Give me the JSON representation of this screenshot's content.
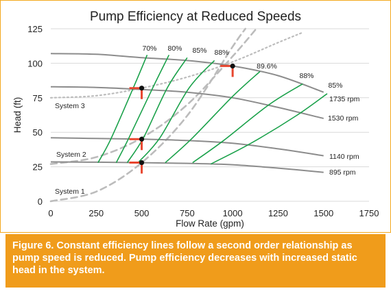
{
  "chart_data": {
    "type": "line",
    "title": "Pump Efficiency at  Reduced Speeds",
    "xlabel": "Flow Rate (gpm)",
    "ylabel": "Head (ft)",
    "xlim": [
      0,
      1750
    ],
    "ylim": [
      0,
      125
    ],
    "x_ticks": [
      0,
      250,
      500,
      750,
      1000,
      1250,
      1500,
      1750
    ],
    "y_ticks": [
      0,
      25,
      50,
      75,
      100,
      125
    ],
    "grid": "horizontal",
    "pump_curves": [
      {
        "label": "1735 rpm",
        "points": [
          [
            0,
            107
          ],
          [
            250,
            106.5
          ],
          [
            500,
            104
          ],
          [
            750,
            102
          ],
          [
            1000,
            98
          ],
          [
            1250,
            91
          ],
          [
            1500,
            79
          ]
        ]
      },
      {
        "label": "1530 rpm",
        "points": [
          [
            0,
            83
          ],
          [
            250,
            82.5
          ],
          [
            500,
            81
          ],
          [
            750,
            79
          ],
          [
            1000,
            75
          ],
          [
            1250,
            68
          ],
          [
            1500,
            60
          ]
        ]
      },
      {
        "label": "1140 rpm",
        "points": [
          [
            0,
            46
          ],
          [
            250,
            45.5
          ],
          [
            500,
            45
          ],
          [
            750,
            44
          ],
          [
            1000,
            42
          ],
          [
            1250,
            38
          ],
          [
            1500,
            33
          ]
        ]
      },
      {
        "label": "895 rpm",
        "points": [
          [
            0,
            28.5
          ],
          [
            250,
            28.3
          ],
          [
            500,
            28
          ],
          [
            750,
            27.5
          ],
          [
            1000,
            26.5
          ],
          [
            1250,
            24
          ],
          [
            1500,
            21
          ]
        ]
      }
    ],
    "efficiency_lines": [
      {
        "label": "70%",
        "points": [
          [
            260,
            28
          ],
          [
            330,
            45
          ],
          [
            450,
            81
          ],
          [
            530,
            106
          ]
        ]
      },
      {
        "label": "80%",
        "points": [
          [
            360,
            28
          ],
          [
            430,
            46
          ],
          [
            560,
            82
          ],
          [
            650,
            106
          ]
        ]
      },
      {
        "label": "85%",
        "points": [
          [
            420,
            28
          ],
          [
            510,
            46
          ],
          [
            640,
            82
          ],
          [
            750,
            104
          ]
        ]
      },
      {
        "label": "88%",
        "points": [
          [
            480,
            28
          ],
          [
            600,
            46
          ],
          [
            760,
            82
          ],
          [
            900,
            102
          ]
        ]
      },
      {
        "label": "89.6%",
        "points": [
          [
            630,
            28
          ],
          [
            780,
            46
          ],
          [
            1000,
            76
          ],
          [
            1150,
            94
          ]
        ]
      },
      {
        "label": "88%",
        "points": [
          [
            780,
            28
          ],
          [
            950,
            44
          ],
          [
            1200,
            70
          ],
          [
            1385,
            85
          ]
        ]
      },
      {
        "label": "85%",
        "points": [
          [
            880,
            27
          ],
          [
            1100,
            42
          ],
          [
            1350,
            62
          ],
          [
            1520,
            78
          ]
        ]
      }
    ],
    "system_curves": [
      {
        "label": "System 3",
        "style": "dotted",
        "points": [
          [
            0,
            75
          ],
          [
            250,
            76.5
          ],
          [
            500,
            82
          ],
          [
            750,
            90
          ],
          [
            1000,
            101
          ],
          [
            1250,
            115
          ],
          [
            1380,
            122
          ]
        ]
      },
      {
        "label": "System 2",
        "style": "dashed",
        "points": [
          [
            0,
            27
          ],
          [
            250,
            32
          ],
          [
            500,
            46
          ],
          [
            750,
            70
          ],
          [
            1000,
            105
          ],
          [
            1130,
            125
          ]
        ]
      },
      {
        "label": "System 1",
        "style": "dashed",
        "points": [
          [
            0,
            0
          ],
          [
            250,
            7
          ],
          [
            500,
            28
          ],
          [
            750,
            62
          ],
          [
            1000,
            112
          ],
          [
            1070,
            125
          ]
        ]
      }
    ],
    "operating_points": [
      {
        "x": 500,
        "y": 28
      },
      {
        "x": 500,
        "y": 45
      },
      {
        "x": 500,
        "y": 82
      },
      {
        "x": 1000,
        "y": 98
      }
    ],
    "colors": {
      "pump": "#8c8c8c",
      "efficiency": "#1aa14a",
      "system": "#bcbcbc",
      "marker": "#e8462f",
      "point": "#111111",
      "accent": "#f09c1b"
    }
  },
  "caption": "Figure 6. Constant efficiency lines follow a second order relationship as pump speed is reduced. Pump efficiency decreases with increased static head in the system."
}
